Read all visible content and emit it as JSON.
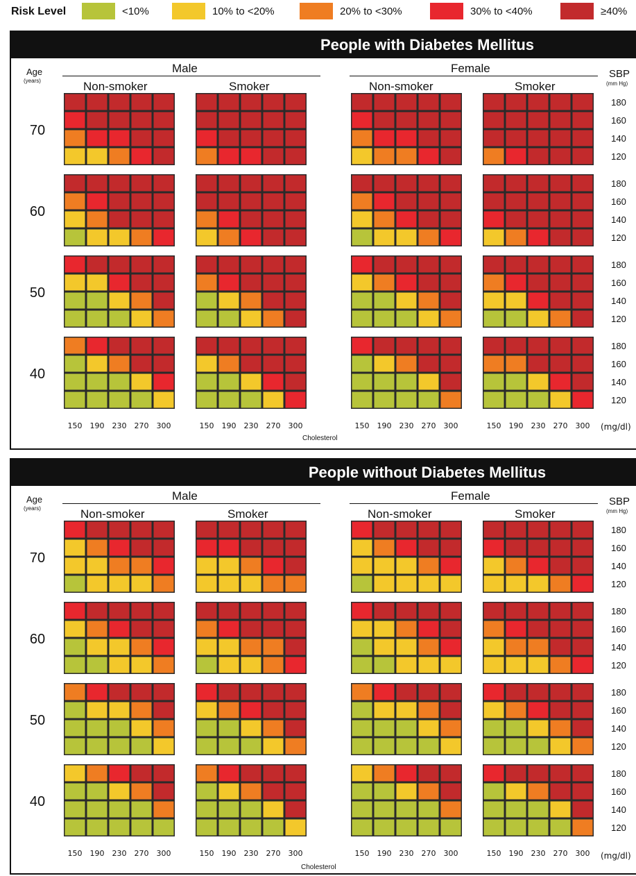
{
  "legend": {
    "title": "Risk Level",
    "levels": [
      {
        "label": "<10%",
        "color": "#b7c43a"
      },
      {
        "label": "10% to <20%",
        "color": "#f3c82b"
      },
      {
        "label": "20% to <30%",
        "color": "#ef7d22"
      },
      {
        "label": "30% to <40%",
        "color": "#e8272e"
      },
      {
        "label": "≥40%",
        "color": "#c22a2c"
      }
    ]
  },
  "labels": {
    "age_header": "Age",
    "age_unit": "(years)",
    "sbp_header": "SBP",
    "sbp_unit": "(mm Hg)",
    "male": "Male",
    "female": "Female",
    "non_smoker": "Non-smoker",
    "smoker": "Smoker",
    "cholesterol": "Cholesterol",
    "chol_unit": "(mg/dl)"
  },
  "chart_data": [
    {
      "type": "heatmap",
      "title": "People with Diabetes Mellitus",
      "ages": [
        "70",
        "60",
        "50",
        "40"
      ],
      "sbp": [
        "180",
        "160",
        "140",
        "120"
      ],
      "cholesterol": [
        "150",
        "190",
        "230",
        "270",
        "300"
      ],
      "groups": [
        "Male Non-smoker",
        "Male Smoker",
        "Female Non-smoker",
        "Female Smoker"
      ],
      "xlabel": "Cholesterol",
      "legend_levels": [
        "<10%",
        "10% to <20%",
        "20% to <30%",
        "30% to <40%",
        "≥40%"
      ],
      "cells": [
        [
          [
            [
              4,
              4,
              4,
              4,
              4
            ],
            [
              3,
              4,
              4,
              4,
              4
            ],
            [
              2,
              3,
              3,
              4,
              4
            ],
            [
              1,
              1,
              2,
              3,
              4
            ]
          ],
          [
            [
              4,
              4,
              4,
              4,
              4
            ],
            [
              4,
              4,
              4,
              4,
              4
            ],
            [
              3,
              4,
              4,
              4,
              4
            ],
            [
              2,
              3,
              3,
              4,
              4
            ]
          ],
          [
            [
              4,
              4,
              4,
              4,
              4
            ],
            [
              3,
              4,
              4,
              4,
              4
            ],
            [
              2,
              3,
              3,
              4,
              4
            ],
            [
              1,
              2,
              2,
              3,
              4
            ]
          ],
          [
            [
              4,
              4,
              4,
              4,
              4
            ],
            [
              4,
              4,
              4,
              4,
              4
            ],
            [
              4,
              4,
              4,
              4,
              4
            ],
            [
              2,
              3,
              4,
              4,
              4
            ]
          ]
        ],
        [
          [
            [
              4,
              4,
              4,
              4,
              4
            ],
            [
              2,
              3,
              4,
              4,
              4
            ],
            [
              1,
              2,
              4,
              4,
              4
            ],
            [
              0,
              1,
              1,
              2,
              3
            ]
          ],
          [
            [
              4,
              4,
              4,
              4,
              4
            ],
            [
              4,
              4,
              4,
              4,
              4
            ],
            [
              2,
              3,
              4,
              4,
              4
            ],
            [
              1,
              2,
              3,
              4,
              4
            ]
          ],
          [
            [
              4,
              4,
              4,
              4,
              4
            ],
            [
              2,
              3,
              4,
              4,
              4
            ],
            [
              1,
              2,
              3,
              4,
              4
            ],
            [
              0,
              1,
              1,
              2,
              3
            ]
          ],
          [
            [
              4,
              4,
              4,
              4,
              4
            ],
            [
              4,
              4,
              4,
              4,
              4
            ],
            [
              3,
              4,
              4,
              4,
              4
            ],
            [
              1,
              2,
              3,
              4,
              4
            ]
          ]
        ],
        [
          [
            [
              3,
              4,
              4,
              4,
              4
            ],
            [
              1,
              1,
              3,
              4,
              4
            ],
            [
              0,
              0,
              1,
              2,
              4
            ],
            [
              0,
              0,
              0,
              1,
              2
            ]
          ],
          [
            [
              4,
              4,
              4,
              4,
              4
            ],
            [
              2,
              3,
              4,
              4,
              4
            ],
            [
              0,
              1,
              2,
              4,
              4
            ],
            [
              0,
              0,
              1,
              2,
              4
            ]
          ],
          [
            [
              3,
              4,
              4,
              4,
              4
            ],
            [
              1,
              2,
              3,
              4,
              4
            ],
            [
              0,
              0,
              1,
              2,
              4
            ],
            [
              0,
              0,
              0,
              1,
              2
            ]
          ],
          [
            [
              4,
              4,
              4,
              4,
              4
            ],
            [
              2,
              3,
              4,
              4,
              4
            ],
            [
              1,
              1,
              3,
              4,
              4
            ],
            [
              0,
              0,
              1,
              2,
              4
            ]
          ]
        ],
        [
          [
            [
              2,
              3,
              4,
              4,
              4
            ],
            [
              0,
              1,
              2,
              4,
              4
            ],
            [
              0,
              0,
              0,
              1,
              3
            ],
            [
              0,
              0,
              0,
              0,
              1
            ]
          ],
          [
            [
              4,
              4,
              4,
              4,
              4
            ],
            [
              1,
              2,
              4,
              4,
              4
            ],
            [
              0,
              0,
              1,
              3,
              4
            ],
            [
              0,
              0,
              0,
              1,
              3
            ]
          ],
          [
            [
              3,
              4,
              4,
              4,
              4
            ],
            [
              0,
              1,
              2,
              4,
              4
            ],
            [
              0,
              0,
              0,
              1,
              4
            ],
            [
              0,
              0,
              0,
              0,
              2
            ]
          ],
          [
            [
              4,
              4,
              4,
              4,
              4
            ],
            [
              2,
              2,
              4,
              4,
              4
            ],
            [
              0,
              0,
              1,
              3,
              4
            ],
            [
              0,
              0,
              0,
              1,
              3
            ]
          ]
        ]
      ]
    },
    {
      "type": "heatmap",
      "title": "People without Diabetes Mellitus",
      "ages": [
        "70",
        "60",
        "50",
        "40"
      ],
      "sbp": [
        "180",
        "160",
        "140",
        "120"
      ],
      "cholesterol": [
        "150",
        "190",
        "230",
        "270",
        "300"
      ],
      "groups": [
        "Male Non-smoker",
        "Male Smoker",
        "Female Non-smoker",
        "Female Smoker"
      ],
      "xlabel": "Cholesterol",
      "legend_levels": [
        "<10%",
        "10% to <20%",
        "20% to <30%",
        "30% to <40%",
        "≥40%"
      ],
      "cells": [
        [
          [
            [
              3,
              4,
              4,
              4,
              4
            ],
            [
              1,
              2,
              3,
              4,
              4
            ],
            [
              1,
              1,
              2,
              2,
              3
            ],
            [
              0,
              1,
              1,
              1,
              2
            ]
          ],
          [
            [
              4,
              4,
              4,
              4,
              4
            ],
            [
              3,
              3,
              4,
              4,
              4
            ],
            [
              1,
              1,
              2,
              3,
              4
            ],
            [
              1,
              1,
              1,
              2,
              2
            ]
          ],
          [
            [
              3,
              4,
              4,
              4,
              4
            ],
            [
              1,
              2,
              3,
              4,
              4
            ],
            [
              1,
              1,
              1,
              2,
              3
            ],
            [
              0,
              1,
              1,
              1,
              1
            ]
          ],
          [
            [
              4,
              4,
              4,
              4,
              4
            ],
            [
              3,
              4,
              4,
              4,
              4
            ],
            [
              1,
              2,
              3,
              4,
              4
            ],
            [
              1,
              1,
              1,
              2,
              3
            ]
          ]
        ],
        [
          [
            [
              3,
              4,
              4,
              4,
              4
            ],
            [
              1,
              2,
              3,
              4,
              4
            ],
            [
              0,
              1,
              1,
              2,
              3
            ],
            [
              0,
              0,
              1,
              1,
              2
            ]
          ],
          [
            [
              4,
              4,
              4,
              4,
              4
            ],
            [
              2,
              3,
              4,
              4,
              4
            ],
            [
              1,
              1,
              2,
              2,
              4
            ],
            [
              0,
              1,
              1,
              2,
              3
            ]
          ],
          [
            [
              3,
              4,
              4,
              4,
              4
            ],
            [
              1,
              1,
              2,
              3,
              4
            ],
            [
              0,
              1,
              1,
              2,
              3
            ],
            [
              0,
              0,
              1,
              1,
              1
            ]
          ],
          [
            [
              4,
              4,
              4,
              4,
              4
            ],
            [
              2,
              3,
              4,
              4,
              4
            ],
            [
              1,
              2,
              2,
              4,
              4
            ],
            [
              1,
              1,
              1,
              2,
              3
            ]
          ]
        ],
        [
          [
            [
              2,
              3,
              4,
              4,
              4
            ],
            [
              0,
              1,
              1,
              2,
              4
            ],
            [
              0,
              0,
              0,
              1,
              2
            ],
            [
              0,
              0,
              0,
              0,
              1
            ]
          ],
          [
            [
              3,
              4,
              4,
              4,
              4
            ],
            [
              1,
              2,
              3,
              4,
              4
            ],
            [
              0,
              0,
              1,
              2,
              4
            ],
            [
              0,
              0,
              0,
              1,
              2
            ]
          ],
          [
            [
              2,
              3,
              4,
              4,
              4
            ],
            [
              0,
              1,
              1,
              2,
              4
            ],
            [
              0,
              0,
              0,
              1,
              2
            ],
            [
              0,
              0,
              0,
              0,
              1
            ]
          ],
          [
            [
              3,
              4,
              4,
              4,
              4
            ],
            [
              1,
              2,
              3,
              4,
              4
            ],
            [
              0,
              0,
              1,
              2,
              4
            ],
            [
              0,
              0,
              0,
              1,
              2
            ]
          ]
        ],
        [
          [
            [
              1,
              2,
              3,
              4,
              4
            ],
            [
              0,
              0,
              1,
              2,
              4
            ],
            [
              0,
              0,
              0,
              0,
              2
            ],
            [
              0,
              0,
              0,
              0,
              0
            ]
          ],
          [
            [
              2,
              3,
              4,
              4,
              4
            ],
            [
              0,
              1,
              2,
              4,
              4
            ],
            [
              0,
              0,
              0,
              1,
              4
            ],
            [
              0,
              0,
              0,
              0,
              1
            ]
          ],
          [
            [
              1,
              2,
              3,
              4,
              4
            ],
            [
              0,
              0,
              1,
              2,
              4
            ],
            [
              0,
              0,
              0,
              0,
              2
            ],
            [
              0,
              0,
              0,
              0,
              0
            ]
          ],
          [
            [
              3,
              4,
              4,
              4,
              4
            ],
            [
              0,
              1,
              2,
              4,
              4
            ],
            [
              0,
              0,
              0,
              1,
              4
            ],
            [
              0,
              0,
              0,
              0,
              2
            ]
          ]
        ]
      ]
    }
  ]
}
